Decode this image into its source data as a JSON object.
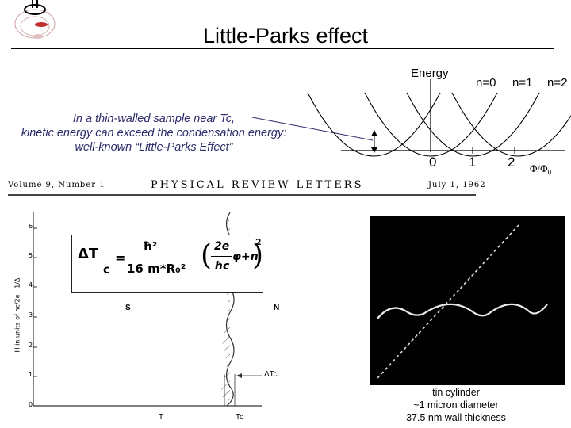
{
  "header": {
    "title": "Little-Parks effect",
    "logo_icon": "institution-logo-icon"
  },
  "note": {
    "line1": "In a thin-walled sample near Tc,",
    "line2": "kinetic energy can exceed the condensation energy:",
    "line3": "well-known “Little-Parks Effect”"
  },
  "energy_plot": {
    "energy_label": "Energy",
    "n_labels": [
      "n=0",
      "n=1",
      "n=2"
    ],
    "x_ticks": [
      "0",
      "1",
      "2"
    ],
    "x_label_main": "Φ/Φ",
    "x_label_sub": "0"
  },
  "journal": {
    "volume": "Volume 9, Number 1",
    "name": "PHYSICAL REVIEW LETTERS",
    "date": "July 1, 1962"
  },
  "phase_diagram": {
    "y_axis_label": "H in units of hc/2e · 1/Δ",
    "y_ticks": [
      "6",
      "5",
      "4",
      "3",
      "2",
      "1",
      "0"
    ],
    "region_s": "S",
    "region_n": "N",
    "x_label_t": "T",
    "x_label_tc": "Tc",
    "delta_label": "ΔTc",
    "formula": {
      "lhs": "ΔT",
      "lhs_sub": "c",
      "eq": "=",
      "numerator": "ħ²",
      "denominator": "16 m*R₀²",
      "paren_num": "2e",
      "paren_den": "ħc",
      "phi": "φ",
      "plus_n": "+n",
      "power": "2"
    }
  },
  "scope": {
    "caption_line1": "tin cylinder",
    "caption_line2": "~1 micron diameter",
    "caption_line3": "37.5 nm wall thickness"
  }
}
